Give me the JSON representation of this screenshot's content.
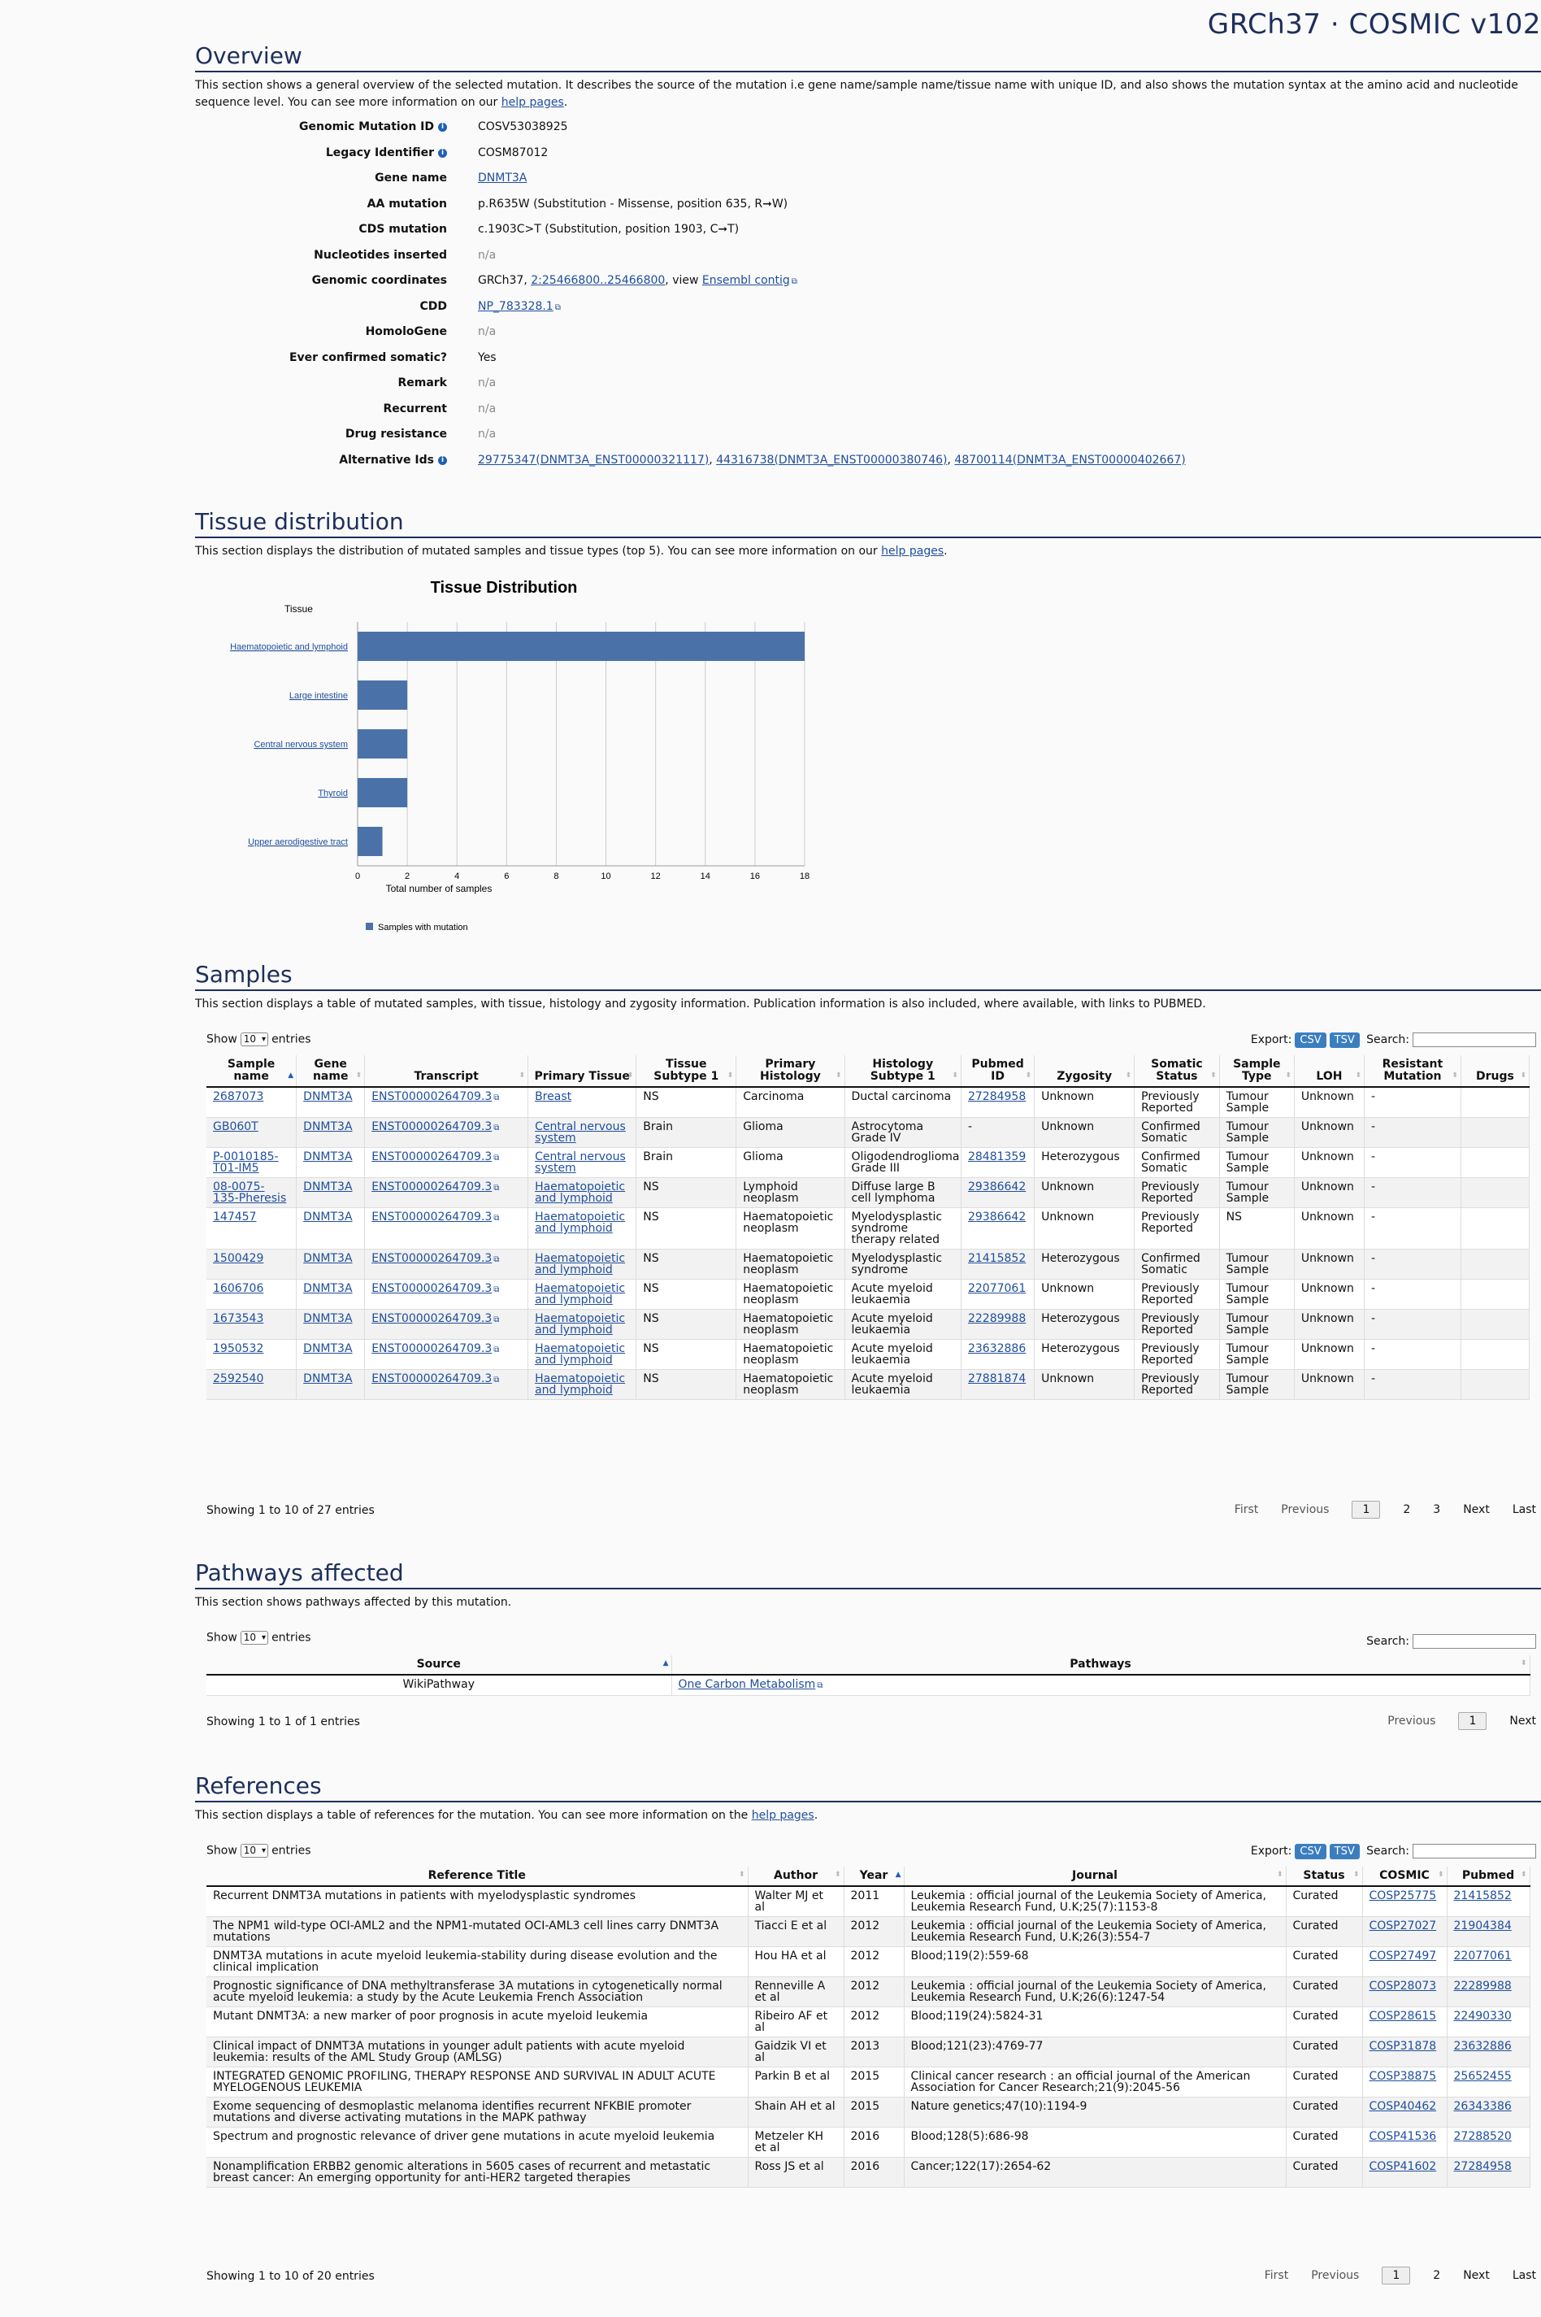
{
  "brand": "GRCh37 · COSMIC v102",
  "overview": {
    "title": "Overview",
    "desc1": "This section shows a general overview of the selected mutation. It describes the source of the mutation i.e gene name/sample name/tissue name with unique ID, and also shows the mutation syntax at the amino acid and nucleotide sequence level. You can see more information on our ",
    "desc_link": "help pages",
    "fields": {
      "genomic_mutation_id": {
        "label": "Genomic Mutation ID",
        "value": "COSV53038925"
      },
      "legacy_identifier": {
        "label": "Legacy Identifier",
        "value": "COSM87012"
      },
      "gene_name": {
        "label": "Gene name",
        "value": "DNMT3A"
      },
      "aa_mutation": {
        "label": "AA mutation",
        "value": "p.R635W (Substitution - Missense, position 635, R➞W)"
      },
      "cds_mutation": {
        "label": "CDS mutation",
        "value": "c.1903C>T (Substitution, position 1903, C➞T)"
      },
      "nucleotides_inserted": {
        "label": "Nucleotides inserted",
        "value": "n/a"
      },
      "genomic_coordinates": {
        "label": "Genomic coordinates",
        "prefix": "GRCh37, ",
        "link": "2:25466800..25466800",
        "mid": ", view ",
        "link2": "Ensembl contig"
      },
      "cdd": {
        "label": "CDD",
        "value": "NP_783328.1"
      },
      "homologene": {
        "label": "HomoloGene",
        "value": "n/a"
      },
      "ever_confirmed": {
        "label": "Ever confirmed somatic?",
        "value": "Yes"
      },
      "remark": {
        "label": "Remark",
        "value": "n/a"
      },
      "recurrent": {
        "label": "Recurrent",
        "value": "n/a"
      },
      "drug_resistance": {
        "label": "Drug resistance",
        "value": "n/a"
      },
      "alternative_ids": {
        "label": "Alternative Ids",
        "values": [
          "29775347(DNMT3A_ENST00000321117)",
          "44316738(DNMT3A_ENST00000380746)",
          "48700114(DNMT3A_ENST00000402667)"
        ]
      }
    }
  },
  "tissue": {
    "title": "Tissue distribution",
    "desc": "This section displays the distribution of mutated samples and tissue types (top 5). You can see more information on our ",
    "desc_link": "help pages"
  },
  "chart_data": {
    "type": "bar",
    "orientation": "horizontal",
    "title": "Tissue Distribution",
    "ylabel": "Tissue",
    "xlabel": "Total number of samples",
    "categories": [
      "Haematopoietic and lymphoid",
      "Large intestine",
      "Central nervous system",
      "Thyroid",
      "Upper aerodigestive tract"
    ],
    "series": [
      {
        "name": "Samples with mutation",
        "values": [
          18,
          2,
          2,
          2,
          1
        ]
      }
    ],
    "xlim": [
      0,
      18
    ],
    "xticks": [
      0,
      2,
      4,
      6,
      8,
      10,
      12,
      14,
      16,
      18
    ],
    "grid": true,
    "legend": "bottom",
    "color": "#4a72a8"
  },
  "samples": {
    "title": "Samples",
    "desc": "This section displays a table of mutated samples, with tissue, histology and zygosity information. Publication information is also included, where available, with links to PUBMED.",
    "show_label": "Show",
    "entries_label": "entries",
    "page_size": "10",
    "export_label": "Export:",
    "csv": "CSV",
    "tsv": "TSV",
    "search_label": "Search:",
    "columns": [
      "Sample name",
      "Gene name",
      "Transcript",
      "Primary Tissue",
      "Tissue Subtype 1",
      "Primary Histology",
      "Histology Subtype 1",
      "Pubmed ID",
      "Zygosity",
      "Somatic Status",
      "Sample Type",
      "LOH",
      "Resistant Mutation",
      "Drugs"
    ],
    "rows": [
      [
        "2687073",
        "DNMT3A",
        "ENST00000264709.3",
        "Breast",
        "NS",
        "Carcinoma",
        "Ductal carcinoma",
        "27284958",
        "Unknown",
        "Previously Reported",
        "Tumour Sample",
        "Unknown",
        "-",
        ""
      ],
      [
        "GB060T",
        "DNMT3A",
        "ENST00000264709.3",
        "Central nervous system",
        "Brain",
        "Glioma",
        "Astrocytoma Grade IV",
        "-",
        "Unknown",
        "Confirmed Somatic",
        "Tumour Sample",
        "Unknown",
        "-",
        ""
      ],
      [
        "P-0010185-T01-IM5",
        "DNMT3A",
        "ENST00000264709.3",
        "Central nervous system",
        "Brain",
        "Glioma",
        "Oligodendroglioma Grade III",
        "28481359",
        "Heterozygous",
        "Confirmed Somatic",
        "Tumour Sample",
        "Unknown",
        "-",
        ""
      ],
      [
        "08-0075-135-Pheresis",
        "DNMT3A",
        "ENST00000264709.3",
        "Haematopoietic and lymphoid",
        "NS",
        "Lymphoid neoplasm",
        "Diffuse large B cell lymphoma",
        "29386642",
        "Unknown",
        "Previously Reported",
        "Tumour Sample",
        "Unknown",
        "-",
        ""
      ],
      [
        "147457",
        "DNMT3A",
        "ENST00000264709.3",
        "Haematopoietic and lymphoid",
        "NS",
        "Haematopoietic neoplasm",
        "Myelodysplastic syndrome therapy related",
        "29386642",
        "Unknown",
        "Previously Reported",
        "NS",
        "Unknown",
        "-",
        ""
      ],
      [
        "1500429",
        "DNMT3A",
        "ENST00000264709.3",
        "Haematopoietic and lymphoid",
        "NS",
        "Haematopoietic neoplasm",
        "Myelodysplastic syndrome",
        "21415852",
        "Heterozygous",
        "Confirmed Somatic",
        "Tumour Sample",
        "Unknown",
        "-",
        ""
      ],
      [
        "1606706",
        "DNMT3A",
        "ENST00000264709.3",
        "Haematopoietic and lymphoid",
        "NS",
        "Haematopoietic neoplasm",
        "Acute myeloid leukaemia",
        "22077061",
        "Unknown",
        "Previously Reported",
        "Tumour Sample",
        "Unknown",
        "-",
        ""
      ],
      [
        "1673543",
        "DNMT3A",
        "ENST00000264709.3",
        "Haematopoietic and lymphoid",
        "NS",
        "Haematopoietic neoplasm",
        "Acute myeloid leukaemia",
        "22289988",
        "Heterozygous",
        "Previously Reported",
        "Tumour Sample",
        "Unknown",
        "-",
        ""
      ],
      [
        "1950532",
        "DNMT3A",
        "ENST00000264709.3",
        "Haematopoietic and lymphoid",
        "NS",
        "Haematopoietic neoplasm",
        "Acute myeloid leukaemia",
        "23632886",
        "Heterozygous",
        "Previously Reported",
        "Tumour Sample",
        "Unknown",
        "-",
        ""
      ],
      [
        "2592540",
        "DNMT3A",
        "ENST00000264709.3",
        "Haematopoietic and lymphoid",
        "NS",
        "Haematopoietic neoplasm",
        "Acute myeloid leukaemia",
        "27881874",
        "Unknown",
        "Previously Reported",
        "Tumour Sample",
        "Unknown",
        "-",
        ""
      ]
    ],
    "showing": "Showing 1 to 10 of 27 entries",
    "pager": {
      "first": "First",
      "previous": "Previous",
      "pages": [
        "1",
        "2",
        "3"
      ],
      "next": "Next",
      "last": "Last"
    }
  },
  "pathways": {
    "title": "Pathways affected",
    "desc": "This section shows pathways affected by this mutation.",
    "show_label": "Show",
    "entries_label": "entries",
    "page_size": "10",
    "search_label": "Search:",
    "columns": [
      "Source",
      "Pathways"
    ],
    "rows": [
      [
        "WikiPathway",
        "One Carbon Metabolism"
      ]
    ],
    "showing": "Showing 1 to 1 of 1 entries",
    "pager": {
      "previous": "Previous",
      "pages": [
        "1"
      ],
      "next": "Next"
    }
  },
  "references": {
    "title": "References",
    "desc": "This section displays a table of references for the mutation. You can see more information on the ",
    "desc_link": "help pages",
    "show_label": "Show",
    "entries_label": "entries",
    "page_size": "10",
    "export_label": "Export:",
    "csv": "CSV",
    "tsv": "TSV",
    "search_label": "Search:",
    "columns": [
      "Reference Title",
      "Author",
      "Year",
      "Journal",
      "Status",
      "COSMIC",
      "Pubmed"
    ],
    "rows": [
      [
        "Recurrent DNMT3A mutations in patients with myelodysplastic syndromes",
        "Walter MJ et al",
        "2011",
        "Leukemia : official journal of the Leukemia Society of America, Leukemia Research Fund, U.K;25(7):1153-8",
        "Curated",
        "COSP25775",
        "21415852"
      ],
      [
        "The NPM1 wild-type OCI-AML2 and the NPM1-mutated OCI-AML3 cell lines carry DNMT3A mutations",
        "Tiacci E et al",
        "2012",
        "Leukemia : official journal of the Leukemia Society of America, Leukemia Research Fund, U.K;26(3):554-7",
        "Curated",
        "COSP27027",
        "21904384"
      ],
      [
        "DNMT3A mutations in acute myeloid leukemia-stability during disease evolution and the clinical implication",
        "Hou HA et al",
        "2012",
        "Blood;119(2):559-68",
        "Curated",
        "COSP27497",
        "22077061"
      ],
      [
        "Prognostic significance of DNA methyltransferase 3A mutations in cytogenetically normal acute myeloid leukemia: a study by the Acute Leukemia French Association",
        "Renneville A et al",
        "2012",
        "Leukemia : official journal of the Leukemia Society of America, Leukemia Research Fund, U.K;26(6):1247-54",
        "Curated",
        "COSP28073",
        "22289988"
      ],
      [
        "Mutant DNMT3A: a new marker of poor prognosis in acute myeloid leukemia",
        "Ribeiro AF et al",
        "2012",
        "Blood;119(24):5824-31",
        "Curated",
        "COSP28615",
        "22490330"
      ],
      [
        "Clinical impact of DNMT3A mutations in younger adult patients with acute myeloid leukemia: results of the AML Study Group (AMLSG)",
        "Gaidzik VI et al",
        "2013",
        "Blood;121(23):4769-77",
        "Curated",
        "COSP31878",
        "23632886"
      ],
      [
        "INTEGRATED GENOMIC PROFILING, THERAPY RESPONSE AND SURVIVAL IN ADULT ACUTE MYELOGENOUS LEUKEMIA",
        "Parkin B et al",
        "2015",
        "Clinical cancer research : an official journal of the American Association for Cancer Research;21(9):2045-56",
        "Curated",
        "COSP38875",
        "25652455"
      ],
      [
        "Exome sequencing of desmoplastic melanoma identifies recurrent NFKBIE promoter mutations and diverse activating mutations in the MAPK pathway",
        "Shain AH et al",
        "2015",
        "Nature genetics;47(10):1194-9",
        "Curated",
        "COSP40462",
        "26343386"
      ],
      [
        "Spectrum and prognostic relevance of driver gene mutations in acute myeloid leukemia",
        "Metzeler KH et al",
        "2016",
        "Blood;128(5):686-98",
        "Curated",
        "COSP41536",
        "27288520"
      ],
      [
        "Nonamplification ERBB2 genomic alterations in 5605 cases of recurrent and metastatic breast cancer: An emerging opportunity for anti-HER2 targeted therapies",
        "Ross JS et al",
        "2016",
        "Cancer;122(17):2654-62",
        "Curated",
        "COSP41602",
        "27284958"
      ]
    ],
    "showing": "Showing 1 to 10 of 20 entries",
    "pager": {
      "first": "First",
      "previous": "Previous",
      "pages": [
        "1",
        "2"
      ],
      "next": "Next",
      "last": "Last"
    }
  }
}
